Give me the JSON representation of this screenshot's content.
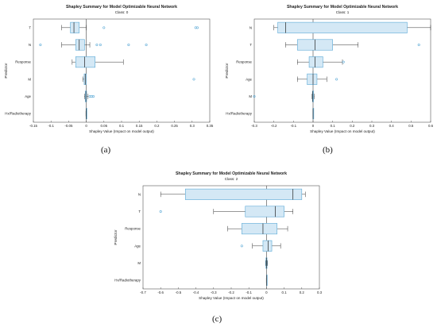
{
  "figure": {
    "panels": [
      {
        "caption": "(a)"
      },
      {
        "caption": "(b)"
      },
      {
        "caption": "(c)"
      }
    ]
  },
  "chart_data": [
    {
      "type": "box",
      "title": "Shapley Summary for Model Optimizable Neural Network",
      "subtitle": "Class: 0",
      "xlabel": "Shapley Value (Impact on model output)",
      "ylabel": "Predictor",
      "xlim": [
        -0.15,
        0.35
      ],
      "xticks": [
        -0.15,
        -0.1,
        -0.05,
        0,
        0.05,
        0.1,
        0.15,
        0.2,
        0.25,
        0.3,
        0.35
      ],
      "xtick_labels": [
        "-0.15",
        "-0.1",
        "-0.05",
        "0",
        "0.05",
        "0.1",
        "0.15",
        "0.2",
        "0.25",
        "0.3",
        "0.35"
      ],
      "box_color": "#d4e8f5",
      "edge_color": "#5aa9d6",
      "categories": [
        "T",
        "N",
        "Response",
        "M",
        "Age",
        "Hx/Radiotherapy"
      ],
      "boxes": [
        {
          "name": "T",
          "whisker_low": -0.07,
          "q1": -0.045,
          "median": -0.035,
          "q3": -0.02,
          "whisker_high": 0.0,
          "outliers": [
            0.05,
            0.31,
            0.315
          ]
        },
        {
          "name": "N",
          "whisker_low": -0.07,
          "q1": -0.03,
          "median": -0.02,
          "q3": -0.005,
          "whisker_high": 0.01,
          "outliers": [
            -0.13,
            0.03,
            0.04,
            0.12,
            0.17
          ]
        },
        {
          "name": "Response",
          "whisker_low": -0.04,
          "q1": -0.03,
          "median": -0.005,
          "q3": 0.025,
          "whisker_high": 0.105,
          "outliers": []
        },
        {
          "name": "M",
          "whisker_low": -0.01,
          "q1": -0.006,
          "median": -0.003,
          "q3": 0.0,
          "whisker_high": 0.0,
          "outliers": [
            0.305
          ]
        },
        {
          "name": "Age",
          "whisker_low": -0.005,
          "q1": -0.003,
          "median": -0.001,
          "q3": 0.001,
          "whisker_high": 0.005,
          "outliers": [
            0.01,
            0.015,
            0.02
          ]
        },
        {
          "name": "Hx/Radiotherapy",
          "whisker_low": -0.001,
          "q1": -0.0005,
          "median": 0.0,
          "q3": 0.0005,
          "whisker_high": 0.001,
          "outliers": []
        }
      ]
    },
    {
      "type": "box",
      "title": "Shapley Summary for Model Optimizable Neural Network",
      "subtitle": "Class: 1",
      "xlabel": "Shapley Value (Impact on model output)",
      "ylabel": "Predictor",
      "xlim": [
        -0.3,
        0.6
      ],
      "xticks": [
        -0.3,
        -0.2,
        -0.1,
        0,
        0.1,
        0.2,
        0.3,
        0.4,
        0.5,
        0.6
      ],
      "xtick_labels": [
        "-0.3",
        "-0.2",
        "-0.1",
        "0",
        "0.1",
        "0.2",
        "0.3",
        "0.4",
        "0.5",
        "0.6"
      ],
      "box_color": "#d4e8f5",
      "edge_color": "#5aa9d6",
      "categories": [
        "N",
        "T",
        "Response",
        "Age",
        "M",
        "Hx/Radiotherapy"
      ],
      "boxes": [
        {
          "name": "N",
          "whisker_low": -0.2,
          "q1": -0.18,
          "median": -0.14,
          "q3": 0.48,
          "whisker_high": 0.6,
          "outliers": []
        },
        {
          "name": "T",
          "whisker_low": -0.14,
          "q1": -0.08,
          "median": 0.01,
          "q3": 0.1,
          "whisker_high": 0.23,
          "outliers": [
            0.54
          ]
        },
        {
          "name": "Response",
          "whisker_low": -0.08,
          "q1": -0.02,
          "median": 0.01,
          "q3": 0.05,
          "whisker_high": 0.15,
          "outliers": [
            0.155
          ]
        },
        {
          "name": "Age",
          "whisker_low": -0.08,
          "q1": -0.03,
          "median": 0.0,
          "q3": 0.02,
          "whisker_high": 0.07,
          "outliers": [
            0.12
          ]
        },
        {
          "name": "M",
          "whisker_low": -0.005,
          "q1": -0.003,
          "median": -0.001,
          "q3": 0.003,
          "whisker_high": 0.006,
          "outliers": [
            -0.3
          ]
        },
        {
          "name": "Hx/Radiotherapy",
          "whisker_low": -0.001,
          "q1": -0.0005,
          "median": 0.0,
          "q3": 0.0005,
          "whisker_high": 0.001,
          "outliers": []
        }
      ]
    },
    {
      "type": "box",
      "title": "Shapley Summary for Model Optimizable Neural Network",
      "subtitle": "Class: 2",
      "xlabel": "Shapley Value (Impact on model output)",
      "ylabel": "Predictor",
      "xlim": [
        -0.7,
        0.3
      ],
      "xticks": [
        -0.7,
        -0.6,
        -0.5,
        -0.4,
        -0.3,
        -0.2,
        -0.1,
        0,
        0.1,
        0.2,
        0.3
      ],
      "xtick_labels": [
        "-0.7",
        "-0.6",
        "-0.5",
        "-0.4",
        "-0.3",
        "-0.2",
        "-0.1",
        "0",
        "0.1",
        "0.2",
        "0.3"
      ],
      "box_color": "#d4e8f5",
      "edge_color": "#5aa9d6",
      "categories": [
        "N",
        "T",
        "Response",
        "Age",
        "M",
        "Hx/Radiotherapy"
      ],
      "boxes": [
        {
          "name": "N",
          "whisker_low": -0.6,
          "q1": -0.46,
          "median": 0.15,
          "q3": 0.2,
          "whisker_high": 0.22,
          "outliers": []
        },
        {
          "name": "T",
          "whisker_low": -0.3,
          "q1": -0.12,
          "median": 0.05,
          "q3": 0.1,
          "whisker_high": 0.15,
          "outliers": [
            -0.6
          ]
        },
        {
          "name": "Response",
          "whisker_low": -0.22,
          "q1": -0.14,
          "median": -0.02,
          "q3": 0.06,
          "whisker_high": 0.12,
          "outliers": []
        },
        {
          "name": "Age",
          "whisker_low": -0.08,
          "q1": -0.02,
          "median": 0.01,
          "q3": 0.03,
          "whisker_high": 0.08,
          "outliers": [
            -0.14
          ]
        },
        {
          "name": "M",
          "whisker_low": -0.005,
          "q1": -0.003,
          "median": 0.0,
          "q3": 0.003,
          "whisker_high": 0.006,
          "outliers": []
        },
        {
          "name": "Hx/Radiotherapy",
          "whisker_low": -0.001,
          "q1": -0.0005,
          "median": 0.0,
          "q3": 0.0005,
          "whisker_high": 0.001,
          "outliers": []
        }
      ]
    }
  ]
}
